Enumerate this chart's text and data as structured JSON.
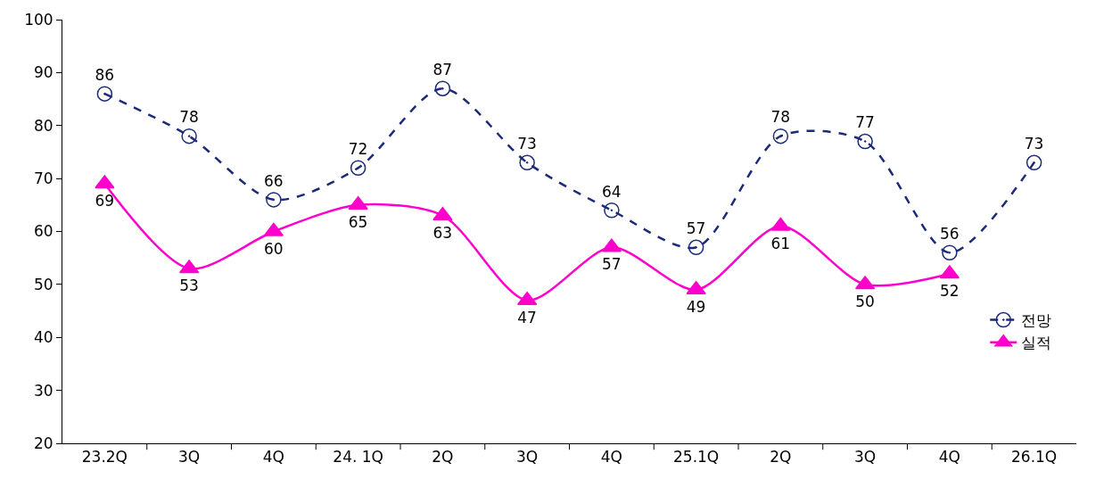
{
  "chart_data": {
    "type": "line",
    "categories": [
      "23.2Q",
      "3Q",
      "4Q",
      "24. 1Q",
      "2Q",
      "3Q",
      "4Q",
      "25.1Q",
      "2Q",
      "3Q",
      "4Q",
      "26.1Q"
    ],
    "series": [
      {
        "name": "전망",
        "color": "#1c2a7a",
        "marker": "circle",
        "line_style": "dashed",
        "values": [
          86,
          78,
          66,
          72,
          87,
          73,
          64,
          57,
          78,
          77,
          56,
          73
        ]
      },
      {
        "name": "실적",
        "color": "#ff00cc",
        "marker": "triangle",
        "line_style": "solid",
        "values": [
          69,
          53,
          60,
          65,
          63,
          47,
          57,
          49,
          61,
          50,
          52,
          null
        ]
      }
    ],
    "ylim": [
      20,
      100
    ],
    "yticks": [
      20,
      30,
      40,
      50,
      60,
      70,
      80,
      90,
      100
    ],
    "grid": false,
    "legend": "bottom right",
    "data_labels": true
  }
}
